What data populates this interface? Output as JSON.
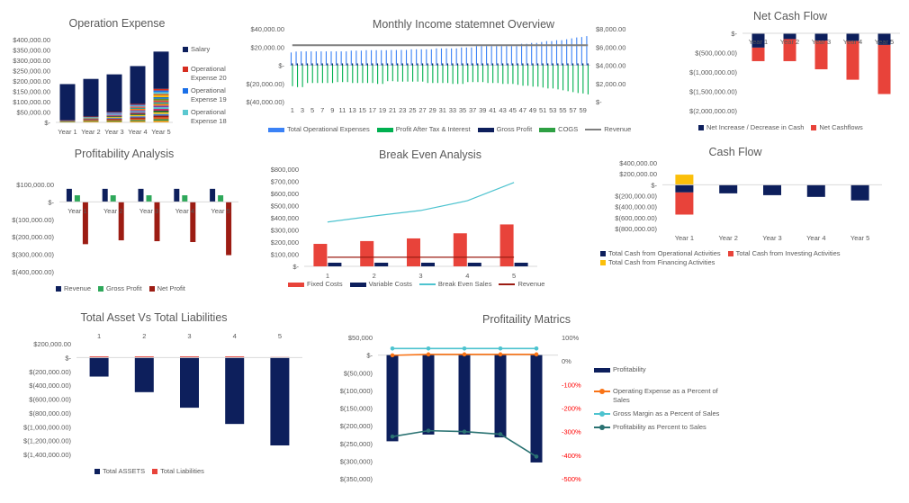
{
  "chart_data": [
    {
      "id": "opex",
      "type": "bar",
      "stacked": true,
      "title": "Operation Expense",
      "categories": [
        "Year 1",
        "Year 2",
        "Year 3",
        "Year 4",
        "Year 5"
      ],
      "ylim": [
        0,
        400000
      ],
      "yticks": [
        "$400,000.00",
        "$350,000.00",
        "$300,000.00",
        "$250,000.00",
        "$200,000.00",
        "$150,000.00",
        "$100,000.00",
        "$50,000.00",
        "$-"
      ],
      "series": [
        {
          "name": "Salary",
          "color": "#0d1f5c",
          "values": [
            175000,
            182000,
            182000,
            183000,
            180000
          ]
        },
        {
          "name": "Operational Expense 20",
          "color": "#d62d20",
          "values": [
            1000,
            1500,
            2500,
            4000,
            8000
          ]
        },
        {
          "name": "Operational Expense 19",
          "color": "#1a6fe8",
          "values": [
            1000,
            1500,
            2500,
            4000,
            8000
          ]
        },
        {
          "name": "Operational Expense 18",
          "color": "#5bc8d0",
          "values": [
            1000,
            1500,
            2500,
            4000,
            8000
          ]
        }
      ],
      "other_operational_expenses": [
        7000,
        23500,
        42500,
        77000,
        138000
      ],
      "stripe_colors": [
        "#f0a020",
        "#2e8b3d",
        "#e85a1a",
        "#9c1c13",
        "#3a7bd5",
        "#f5c518",
        "#1c5f2a",
        "#c2185b",
        "#4dc3cf",
        "#7b3fa0",
        "#ff7f0e",
        "#2aa198",
        "#e8433a",
        "#6b8e23",
        "#1f77b4",
        "#ffbf00",
        "#d2691e"
      ]
    },
    {
      "id": "monthly",
      "type": "bar",
      "title": "Monthly Income statemnet Overview",
      "categories_label_every": 2,
      "months": 60,
      "ylim": [
        -40000,
        40000
      ],
      "yticks": [
        "$40,000.00",
        "$20,000.00",
        "$-",
        "$(20,000.00)",
        "$(40,000.00)"
      ],
      "y2lim": [
        0,
        8000
      ],
      "y2ticks": [
        "$8,000.00",
        "$6,000.00",
        "$4,000.00",
        "$2,000.00",
        "$-"
      ],
      "series": [
        {
          "name": "Total Operational Expenses",
          "color": "#3b82f6",
          "kind": "bar",
          "values": [
            14000,
            15000,
            15200,
            15200,
            15200,
            15200,
            15200,
            15200,
            15200,
            15200,
            15200,
            15200,
            16000,
            16000,
            16000,
            16500,
            16500,
            16500,
            16500,
            16500,
            16700,
            16700,
            16800,
            16800,
            17500,
            17500,
            17500,
            17500,
            17500,
            18500,
            18500,
            18500,
            18500,
            18500,
            19500,
            19500,
            19500,
            21000,
            21000,
            21000,
            21000,
            21000,
            21000,
            21000,
            21000,
            21000,
            23500,
            23500,
            24500,
            24500,
            25500,
            26500,
            26500,
            27500,
            27500,
            28500,
            29500,
            30500,
            31000,
            32000
          ]
        },
        {
          "name": "Profit After Tax & Interest",
          "color": "#00b050",
          "kind": "bar",
          "values": [
            -23000,
            -24000,
            -24000,
            -19500,
            -19500,
            -19500,
            -19500,
            -19500,
            -19500,
            -18500,
            -18500,
            -18500,
            -19500,
            -19500,
            -19500,
            -19500,
            -19500,
            -20500,
            -20500,
            -17500,
            -17500,
            -18000,
            -18000,
            -18000,
            -18000,
            -18000,
            -18000,
            -19500,
            -19500,
            -19500,
            -19500,
            -19500,
            -20500,
            -20500,
            -20500,
            -18500,
            -18500,
            -18500,
            -18500,
            -19500,
            -19500,
            -19500,
            -20500,
            -20500,
            -20500,
            -21500,
            -22500,
            -22500,
            -23500,
            -23500,
            -24500,
            -25500,
            -25500,
            -26500,
            -27500,
            -28500,
            -29500,
            -30500,
            -31000,
            -32000
          ]
        },
        {
          "name": "Gross Profit",
          "color": "#0d1f5c",
          "kind": "bar",
          "values": [
            2000,
            2000,
            2000,
            2000,
            2000,
            2000,
            2000,
            2000,
            2000,
            2000,
            2000,
            2000,
            2000,
            2000,
            2000,
            2000,
            2000,
            2000,
            2000,
            2000,
            2000,
            2000,
            2000,
            2000,
            2000,
            2000,
            2000,
            2000,
            2000,
            2000,
            2000,
            2000,
            2000,
            2000,
            2000,
            2000,
            2000,
            2000,
            2000,
            2000,
            2000,
            2000,
            2000,
            2000,
            2000,
            2000,
            2000,
            2000,
            2000,
            2000,
            2000,
            2000,
            2000,
            2000,
            2000,
            2000,
            2000,
            2000,
            2000,
            2000
          ]
        },
        {
          "name": "COGS",
          "color": "#2ea043",
          "kind": "bar",
          "values": []
        },
        {
          "name": "Revenue",
          "color": "#7f7f7f",
          "kind": "line",
          "axis": "secondary",
          "values": [
            6200,
            6200,
            6200,
            6200,
            6200,
            6200,
            6200,
            6200,
            6200,
            6200,
            6200,
            6200,
            6200,
            6200,
            6200,
            6200,
            6200,
            6200,
            6200,
            6200,
            6200,
            6200,
            6200,
            6200,
            6200,
            6200,
            6200,
            6200,
            6200,
            6200,
            6200,
            6200,
            6200,
            6200,
            6200,
            6200,
            6200,
            6200,
            6200,
            6200,
            6200,
            6200,
            6200,
            6200,
            6200,
            6200,
            6200,
            6200,
            6200,
            6200,
            6200,
            6200,
            6200,
            6200,
            6200,
            6200,
            6200,
            6200,
            6200,
            6200
          ]
        }
      ]
    },
    {
      "id": "netcash",
      "type": "bar",
      "stacked": true,
      "title": "Net Cash Flow",
      "categories": [
        "Year 1",
        "Year 2",
        "Year 3",
        "Year 4",
        "Year 5"
      ],
      "ylim": [
        -2000000,
        0
      ],
      "yticks": [
        "$-",
        "$(500,000.00)",
        "$(1,000,000.00)",
        "$(1,500,000.00)",
        "$(2,000,000.00)"
      ],
      "series": [
        {
          "name": "Net Increase / Decrease in Cash",
          "color": "#0d1f5c",
          "values": [
            -370000,
            -150000,
            -190000,
            -200000,
            -300000
          ]
        },
        {
          "name": "Net Cashflows",
          "color": "#e8433a",
          "values": [
            -350000,
            -570000,
            -740000,
            -1000000,
            -1270000
          ]
        }
      ]
    },
    {
      "id": "profitability",
      "type": "bar",
      "title": "Profitability Analysis",
      "categories": [
        "Year 1",
        "Year 2",
        "Year 3",
        "Year 4",
        "Year 5"
      ],
      "ylim": [
        -400000,
        100000
      ],
      "yticks": [
        "$100,000.00",
        "$-",
        "$(100,000.00)",
        "$(200,000.00)",
        "$(300,000.00)",
        "$(400,000.00)"
      ],
      "series": [
        {
          "name": "Revenue",
          "color": "#0d1f5c",
          "values": [
            75000,
            75000,
            75000,
            75000,
            75000
          ]
        },
        {
          "name": "Gross Profit",
          "color": "#2ea85a",
          "values": [
            38000,
            38000,
            38000,
            38000,
            38000
          ]
        },
        {
          "name": "Net Profit",
          "color": "#9c1c13",
          "values": [
            -242000,
            -220000,
            -225000,
            -230000,
            -305000
          ]
        }
      ]
    },
    {
      "id": "breakeven",
      "type": "bar+line",
      "title": "Break Even Analysis",
      "categories": [
        "1",
        "2",
        "3",
        "4",
        "5"
      ],
      "ylim": [
        0,
        800000
      ],
      "yticks": [
        "$800,000",
        "$700,000",
        "$600,000",
        "$500,000",
        "$400,000",
        "$300,000",
        "$200,000",
        "$100,000",
        "$-"
      ],
      "series": [
        {
          "name": "Fixed Costs",
          "color": "#e8433a",
          "kind": "bar",
          "values": [
            185000,
            208000,
            230000,
            272000,
            345000
          ]
        },
        {
          "name": "Variable Costs",
          "color": "#0d1f5c",
          "kind": "bar",
          "values": [
            30000,
            30000,
            30000,
            30000,
            30000
          ]
        },
        {
          "name": "Break Even Sales",
          "color": "#4dc3cf",
          "kind": "line",
          "values": [
            365000,
            415000,
            460000,
            540000,
            690000
          ]
        },
        {
          "name": "Revenue",
          "color": "#9c1c13",
          "kind": "line",
          "values": [
            75000,
            75000,
            75000,
            75000,
            75000
          ]
        }
      ]
    },
    {
      "id": "cashflow",
      "type": "bar",
      "stacked": true,
      "title": "Cash Flow",
      "categories": [
        "Year 1",
        "Year 2",
        "Year 3",
        "Year 4",
        "Year 5"
      ],
      "ylim": [
        -800000,
        400000
      ],
      "yticks": [
        "$400,000.00",
        "$200,000.00",
        "$-",
        "$(200,000.00)",
        "$(400,000.00)",
        "$(600,000.00)",
        "$(800,000.00)"
      ],
      "series": [
        {
          "name": "Total Cash from Operational Activities",
          "color": "#0d1f5c",
          "values": [
            -140000,
            -157000,
            -190000,
            -222000,
            -286000
          ]
        },
        {
          "name": "Total Cash from Investing Activities",
          "color": "#e8433a",
          "values": [
            -405000,
            0,
            0,
            0,
            0
          ]
        },
        {
          "name": "Total Cash from Financing Activities",
          "color": "#fbbf0a",
          "values": [
            185000,
            0,
            0,
            0,
            0
          ]
        }
      ]
    },
    {
      "id": "assets",
      "type": "bar",
      "stacked": true,
      "title": "Total Asset Vs Total Liabilities",
      "categories": [
        "1",
        "2",
        "3",
        "4",
        "5"
      ],
      "ylim": [
        -1400000,
        200000
      ],
      "yticks": [
        "$200,000.00",
        "$-",
        "$(200,000.00)",
        "$(400,000.00)",
        "$(600,000.00)",
        "$(800,000.00)",
        "$(1,000,000.00)",
        "$(1,200,000.00)",
        "$(1,400,000.00)"
      ],
      "series": [
        {
          "name": "Total ASSETS",
          "color": "#0d1f5c",
          "values": [
            -275000,
            -500000,
            -725000,
            -960000,
            -1270000
          ]
        },
        {
          "name": "Total Liabilities",
          "color": "#e8433a",
          "values": [
            18000,
            18000,
            18000,
            18000,
            8000
          ]
        }
      ]
    },
    {
      "id": "matrics",
      "type": "bar+line",
      "title": "Profitaility Matrics",
      "categories": [
        "1",
        "2",
        "3",
        "4",
        "5"
      ],
      "ylim": [
        -350000,
        50000
      ],
      "yticks": [
        "$50,000",
        "$-",
        "$(50,000)",
        "$(100,000)",
        "$(150,000)",
        "$(200,000)",
        "$(250,000)",
        "$(300,000)",
        "$(350,000)"
      ],
      "y2lim": [
        -500,
        100
      ],
      "y2ticks": [
        "100%",
        "0%",
        "-100%",
        "-200%",
        "-300%",
        "-400%",
        "-500%"
      ],
      "y2_negative_color": "#ff0000",
      "series": [
        {
          "name": "Profitability",
          "color": "#0d1f5c",
          "kind": "bar",
          "values": [
            -244000,
            -225000,
            -225000,
            -233000,
            -304000
          ]
        },
        {
          "name": "Operating Expense as a Percent of Sales",
          "color": "#f97316",
          "kind": "line",
          "axis": "secondary",
          "values": [
            24,
            28,
            28,
            28,
            28
          ]
        },
        {
          "name": "Gross Margin as a Percent of Sales",
          "color": "#4dc3cf",
          "kind": "line",
          "axis": "secondary",
          "values": [
            53,
            53,
            53,
            53,
            53
          ]
        },
        {
          "name": "Profitability as Percent to Sales",
          "color": "#2a7272",
          "kind": "line",
          "axis": "secondary",
          "values": [
            -321,
            -296,
            -300,
            -311,
            -406
          ]
        }
      ]
    }
  ]
}
